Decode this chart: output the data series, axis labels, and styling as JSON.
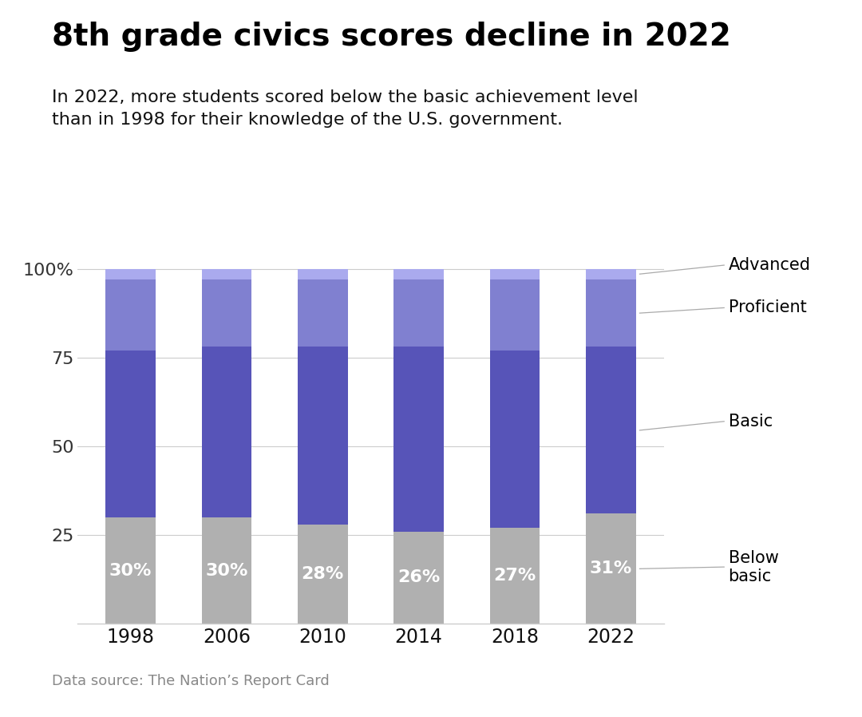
{
  "title": "8th grade civics scores decline in 2022",
  "subtitle": "In 2022, more students scored below the basic achievement level\nthan in 1998 for their knowledge of the U.S. government.",
  "source": "Data source: The Nation’s Report Card",
  "years": [
    "1998",
    "2006",
    "2010",
    "2014",
    "2018",
    "2022"
  ],
  "below_basic": [
    30,
    30,
    28,
    26,
    27,
    31
  ],
  "basic": [
    47,
    48,
    50,
    52,
    50,
    47
  ],
  "proficient": [
    20,
    19,
    19,
    19,
    20,
    19
  ],
  "advanced": [
    3,
    3,
    3,
    3,
    3,
    3
  ],
  "colors": {
    "below_basic": "#b0b0b0",
    "basic": "#5754b8",
    "proficient": "#8080d0",
    "advanced": "#aaaaee"
  },
  "background_color": "#ffffff",
  "title_fontsize": 28,
  "subtitle_fontsize": 16,
  "source_fontsize": 13,
  "bar_label_fontsize": 16,
  "axis_fontsize": 16,
  "legend_fontsize": 15
}
